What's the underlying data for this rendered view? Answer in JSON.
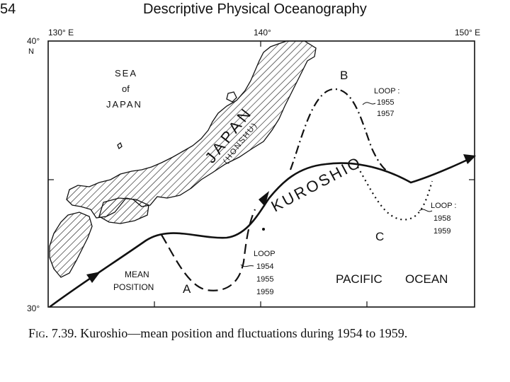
{
  "header": {
    "page_number": "54",
    "title": "Descriptive Physical Oceanography"
  },
  "axes": {
    "lon_130": "130° E",
    "lon_140": "140°",
    "lon_150": "150° E",
    "lat_40": "40°",
    "lat_40_dir": "N",
    "lat_30": "30°"
  },
  "labels": {
    "sea_line1": "SEA",
    "sea_line2": "of",
    "sea_line3": "JAPAN",
    "japan": "JAPAN",
    "honshu": "(HONSHU)",
    "kuroshio": "KUROSHIO",
    "pacific": "PACIFIC",
    "ocean": "OCEAN",
    "mean_line1": "MEAN",
    "mean_line2": "POSITION",
    "loop_a_letter": "A",
    "loop_b_letter": "B",
    "loop_c_letter": "C",
    "loop_a_title": "LOOP",
    "loop_a_y1": "1954",
    "loop_a_y2": "1955",
    "loop_a_y3": "1959",
    "loop_b_title": "LOOP :",
    "loop_b_y1": "1955",
    "loop_b_y2": "1957",
    "loop_c_title": "LOOP :",
    "loop_c_y1": "1958",
    "loop_c_y2": "1959"
  },
  "caption": {
    "fig_no": "Fig. 7.39.",
    "text": "Kuroshio—mean position and fluctuations during 1954 to 1959."
  },
  "legend_meaning": {
    "solid": "mean position",
    "dashed": "loop 1954 1955 1959",
    "dash_dot": "loop 1955 1957",
    "dotted": "loop 1958 1959"
  }
}
